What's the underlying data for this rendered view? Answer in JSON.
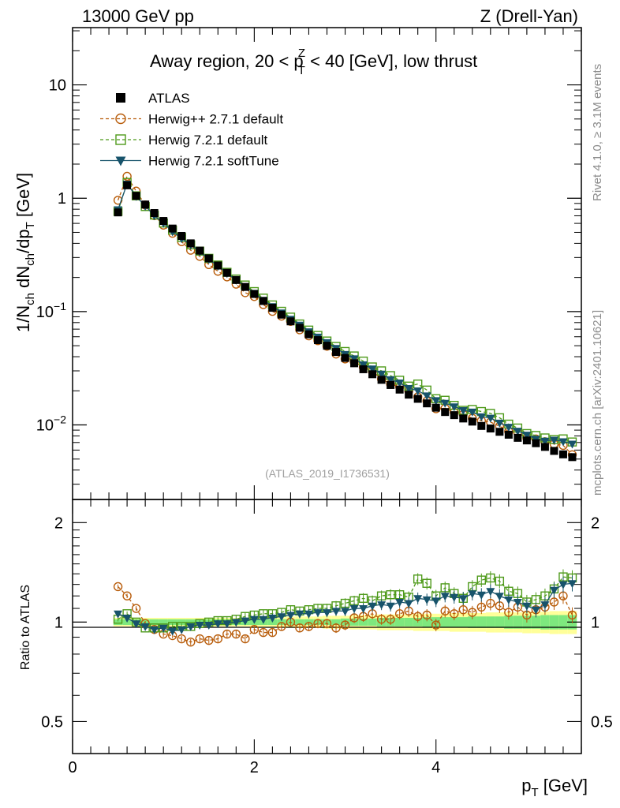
{
  "header": {
    "left": "13000 GeV pp",
    "right": "Z (Drell-Yan)"
  },
  "side_labels": {
    "rivet": "Rivet 4.1.0, ≥ 3.1M events",
    "mcplots": "mcplots.cern.ch [arXiv:2401.10621]"
  },
  "chart_data": [
    {
      "type": "scatter",
      "title_parts": {
        "a": "Away region, 20 < p",
        "sup": "Z",
        "sub": "T",
        "b": " < 40 [GeV], low thrust"
      },
      "analysis_id": "(ATLAS_2019_I1736531)",
      "ylabel": "1/N_ch dN_ch/dp_T [GeV]",
      "xlabel": "p_T [GeV]",
      "yscale": "log",
      "xlim": [
        0,
        5.6
      ],
      "ylim": [
        0.0022,
        32
      ],
      "y_ticks": [
        {
          "v": 0.01,
          "base": "10",
          "exp": "−2"
        },
        {
          "v": 0.1,
          "base": "10",
          "exp": "−1"
        },
        {
          "v": 1,
          "base": "1",
          "exp": ""
        },
        {
          "v": 10,
          "base": "10",
          "exp": ""
        }
      ],
      "x": [
        0.5,
        0.6,
        0.7,
        0.8,
        0.9,
        1.0,
        1.1,
        1.2,
        1.3,
        1.4,
        1.5,
        1.6,
        1.7,
        1.8,
        1.9,
        2.0,
        2.1,
        2.2,
        2.3,
        2.4,
        2.5,
        2.6,
        2.7,
        2.8,
        2.9,
        3.0,
        3.1,
        3.2,
        3.3,
        3.4,
        3.5,
        3.6,
        3.7,
        3.8,
        3.9,
        4.0,
        4.1,
        4.2,
        4.3,
        4.4,
        4.5,
        4.6,
        4.7,
        4.8,
        4.9,
        5.0,
        5.1,
        5.2,
        5.3,
        5.4,
        5.5
      ],
      "series": [
        {
          "name": "ATLAS",
          "color": "#000000",
          "marker": "square-filled",
          "values": [
            0.75,
            1.3,
            1.05,
            0.88,
            0.74,
            0.63,
            0.54,
            0.465,
            0.4,
            0.345,
            0.295,
            0.255,
            0.22,
            0.19,
            0.165,
            0.143,
            0.124,
            0.108,
            0.094,
            0.082,
            0.072,
            0.063,
            0.056,
            0.05,
            0.044,
            0.039,
            0.035,
            0.031,
            0.028,
            0.025,
            0.0225,
            0.0205,
            0.0185,
            0.017,
            0.0155,
            0.0142,
            0.013,
            0.0122,
            0.0114,
            0.0107,
            0.0098,
            0.0093,
            0.0087,
            0.0082,
            0.0077,
            0.0073,
            0.0069,
            0.0064,
            0.0059,
            0.0055,
            0.0052
          ]
        },
        {
          "name": "Herwig++ 2.7.1 default",
          "color": "#b85c0a",
          "marker": "circle-open",
          "dash": "4,3",
          "ratio": [
            1.28,
            1.2,
            1.1,
            0.99,
            0.95,
            0.92,
            0.91,
            0.89,
            0.87,
            0.89,
            0.88,
            0.89,
            0.92,
            0.92,
            0.89,
            0.95,
            0.93,
            0.93,
            0.97,
            1.0,
            0.96,
            0.97,
            0.99,
            0.99,
            0.96,
            0.98,
            1.03,
            1.04,
            1.06,
            1.02,
            1.02,
            1.06,
            1.08,
            1.04,
            1.05,
            0.98,
            1.08,
            1.06,
            1.09,
            1.07,
            1.11,
            1.14,
            1.12,
            1.07,
            1.11,
            1.05,
            1.09,
            1.11,
            1.15,
            1.2,
            1.05
          ]
        },
        {
          "name": "Herwig 7.2.1 default",
          "color": "#4e9a1a",
          "marker": "square-open",
          "dash": "4,3",
          "ratio": [
            1.02,
            1.06,
            1.0,
            0.96,
            0.96,
            0.96,
            0.97,
            0.97,
            0.97,
            0.99,
            1.0,
            1.01,
            1.01,
            1.02,
            1.04,
            1.05,
            1.06,
            1.06,
            1.07,
            1.09,
            1.08,
            1.09,
            1.1,
            1.1,
            1.12,
            1.14,
            1.16,
            1.18,
            1.16,
            1.2,
            1.21,
            1.21,
            1.19,
            1.35,
            1.31,
            1.2,
            1.27,
            1.22,
            1.18,
            1.28,
            1.34,
            1.36,
            1.33,
            1.24,
            1.22,
            1.15,
            1.17,
            1.2,
            1.26,
            1.37,
            1.36
          ]
        },
        {
          "name": "Herwig 7.2.1 softTune",
          "color": "#17536b",
          "marker": "triangle-down-filled",
          "ratio": [
            1.06,
            1.03,
            0.99,
            0.97,
            0.95,
            0.96,
            0.94,
            0.95,
            0.97,
            0.98,
            0.98,
            0.99,
            0.99,
            1.0,
            1.01,
            1.02,
            1.02,
            1.03,
            1.04,
            1.05,
            1.06,
            1.06,
            1.07,
            1.07,
            1.08,
            1.08,
            1.1,
            1.1,
            1.12,
            1.13,
            1.12,
            1.15,
            1.14,
            1.18,
            1.17,
            1.16,
            1.2,
            1.19,
            1.18,
            1.22,
            1.21,
            1.24,
            1.2,
            1.17,
            1.15,
            1.12,
            1.09,
            1.13,
            1.25,
            1.3,
            1.31
          ]
        }
      ]
    },
    {
      "type": "scatter",
      "panel": "ratio",
      "ylabel": "Ratio to ATLAS",
      "xlabel": "p_T [GeV]",
      "yscale": "log",
      "xlim": [
        0,
        5.6
      ],
      "ylim": [
        0.4,
        2.35
      ],
      "y_ticks": [
        {
          "v": 0.5,
          "label": "0.5"
        },
        {
          "v": 1,
          "label": "1"
        },
        {
          "v": 2,
          "label": "2"
        }
      ],
      "x_ticks": [
        {
          "v": 0,
          "label": "0"
        },
        {
          "v": 2,
          "label": "2"
        },
        {
          "v": 4,
          "label": "4"
        }
      ],
      "uncertainty_band": {
        "inner_color": "#7ee87e",
        "outer_color": "#ffff99",
        "inner": [
          0.02,
          0.02,
          0.02,
          0.02,
          0.02,
          0.02,
          0.02,
          0.02,
          0.02,
          0.02,
          0.02,
          0.02,
          0.02,
          0.02,
          0.02,
          0.02,
          0.02,
          0.02,
          0.02,
          0.02,
          0.02,
          0.02,
          0.02,
          0.02,
          0.02,
          0.025,
          0.025,
          0.025,
          0.025,
          0.03,
          0.03,
          0.03,
          0.03,
          0.03,
          0.035,
          0.035,
          0.035,
          0.035,
          0.035,
          0.04,
          0.04,
          0.04,
          0.04,
          0.045,
          0.045,
          0.045,
          0.045,
          0.05,
          0.05,
          0.05,
          0.05
        ],
        "outer": [
          0.03,
          0.03,
          0.03,
          0.03,
          0.03,
          0.03,
          0.03,
          0.03,
          0.03,
          0.03,
          0.03,
          0.03,
          0.03,
          0.03,
          0.03,
          0.035,
          0.035,
          0.035,
          0.035,
          0.04,
          0.04,
          0.04,
          0.04,
          0.045,
          0.045,
          0.045,
          0.05,
          0.05,
          0.05,
          0.055,
          0.055,
          0.055,
          0.055,
          0.06,
          0.06,
          0.06,
          0.06,
          0.065,
          0.065,
          0.065,
          0.065,
          0.07,
          0.07,
          0.07,
          0.07,
          0.075,
          0.075,
          0.075,
          0.08,
          0.08,
          0.08
        ]
      }
    }
  ]
}
